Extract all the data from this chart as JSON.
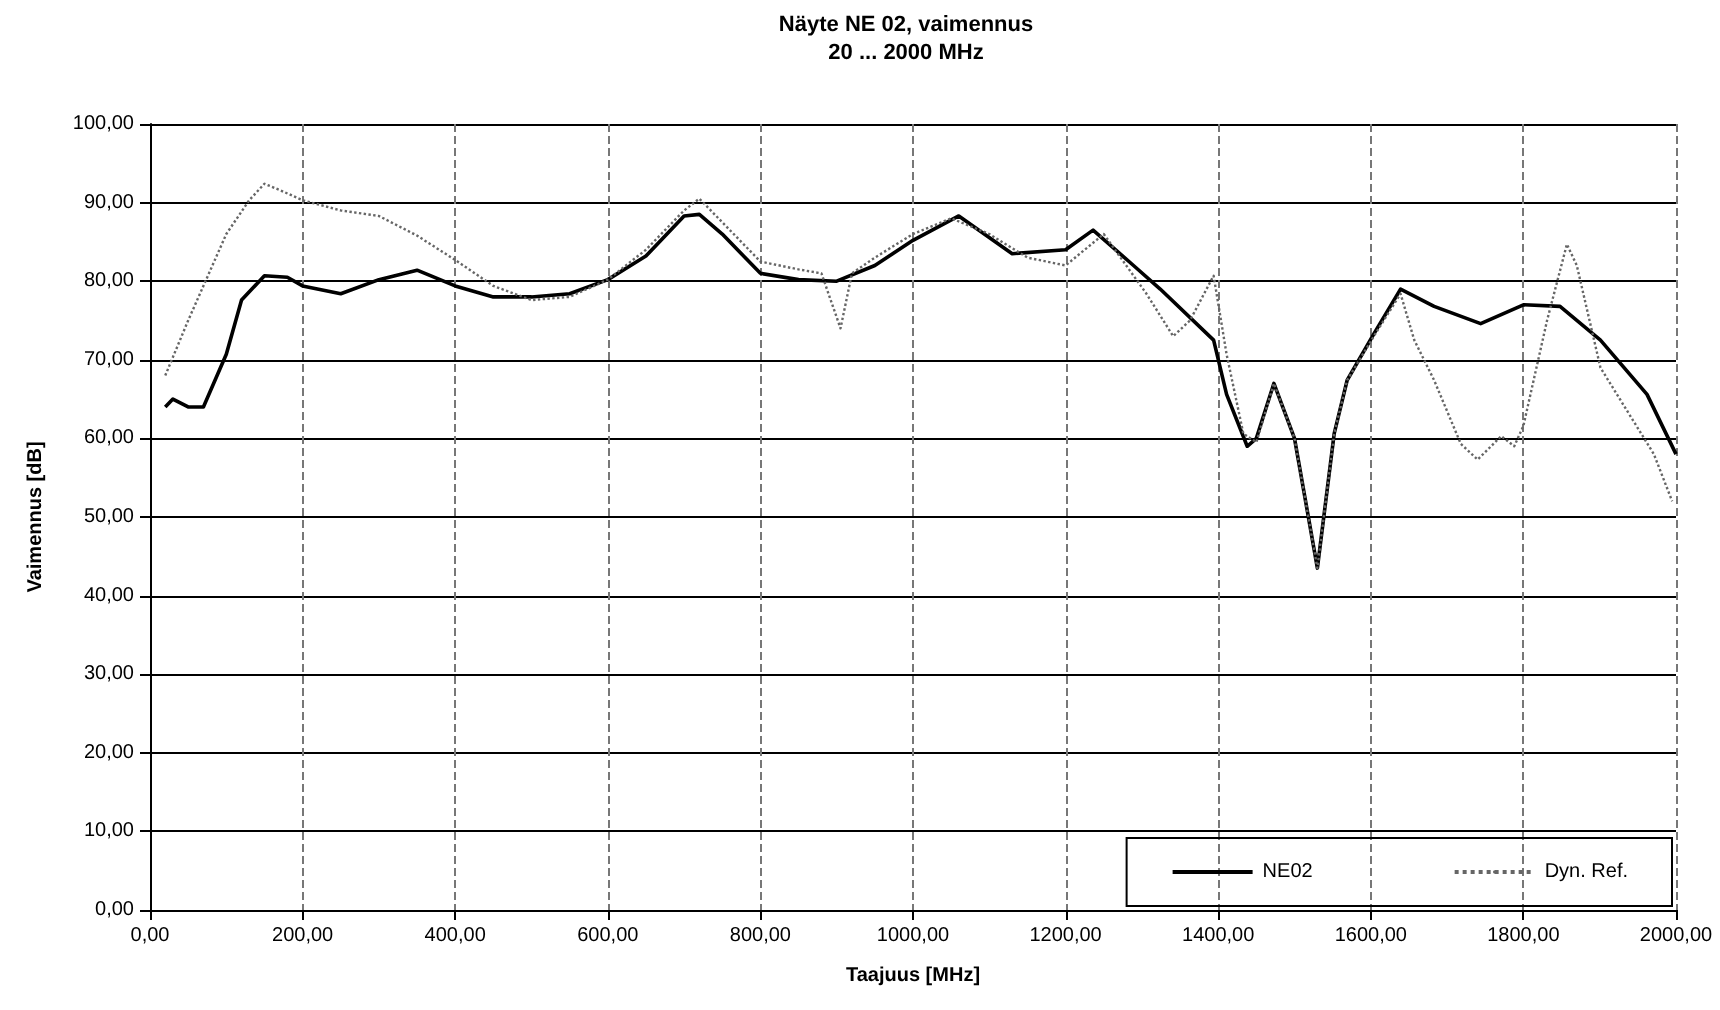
{
  "chart_data": {
    "type": "line",
    "title": "Näyte NE 02, vaimennus",
    "subtitle": "20 ... 2000 MHz",
    "xlabel": "Taajuus [MHz]",
    "ylabel": "Vaimennus [dB]",
    "xlim": [
      0,
      2000
    ],
    "ylim": [
      0,
      100
    ],
    "xticks": [
      {
        "value": 0,
        "label": "0,00"
      },
      {
        "value": 200,
        "label": "200,00"
      },
      {
        "value": 400,
        "label": "400,00"
      },
      {
        "value": 600,
        "label": "600,00"
      },
      {
        "value": 800,
        "label": "800,00"
      },
      {
        "value": 1000,
        "label": "1000,00"
      },
      {
        "value": 1200,
        "label": "1200,00"
      },
      {
        "value": 1400,
        "label": "1400,00"
      },
      {
        "value": 1600,
        "label": "1600,00"
      },
      {
        "value": 1800,
        "label": "1800,00"
      },
      {
        "value": 2000,
        "label": "2000,00"
      }
    ],
    "yticks": [
      {
        "value": 0,
        "label": "0,00"
      },
      {
        "value": 10,
        "label": "10,00"
      },
      {
        "value": 20,
        "label": "20,00"
      },
      {
        "value": 30,
        "label": "30,00"
      },
      {
        "value": 40,
        "label": "40,00"
      },
      {
        "value": 50,
        "label": "50,00"
      },
      {
        "value": 60,
        "label": "60,00"
      },
      {
        "value": 70,
        "label": "70,00"
      },
      {
        "value": 80,
        "label": "80,00"
      },
      {
        "value": 90,
        "label": "90,00"
      },
      {
        "value": 100,
        "label": "100,00"
      }
    ],
    "grid": true,
    "legend": "bottom right",
    "marker": "none",
    "series": [
      {
        "name": "NE02",
        "color": "#000000",
        "line_style": "solid",
        "x": [
          20,
          30,
          50,
          70,
          100,
          120,
          150,
          180,
          200,
          250,
          300,
          350,
          400,
          450,
          500,
          550,
          600,
          650,
          700,
          720,
          750,
          800,
          850,
          900,
          950,
          1000,
          1060,
          1130,
          1200,
          1236,
          1289,
          1324,
          1394,
          1411,
          1438,
          1450,
          1473,
          1500,
          1530,
          1552,
          1569,
          1604,
          1639,
          1683,
          1744,
          1800,
          1848,
          1901,
          1962,
          2000
        ],
        "values": [
          64,
          65,
          64,
          64,
          70.7,
          77.6,
          80.7,
          80.5,
          79.4,
          78.4,
          80.2,
          81.4,
          79.4,
          78,
          78,
          78.4,
          80.2,
          83.2,
          88.3,
          88.5,
          86,
          81,
          80.2,
          80,
          82,
          85.2,
          88.3,
          83.5,
          84,
          86.5,
          82,
          79,
          72.5,
          65.6,
          59,
          60,
          67,
          60,
          43.5,
          60.6,
          67.4,
          73.3,
          79,
          76.8,
          74.6,
          77,
          76.8,
          72.5,
          65.6,
          58
        ]
      },
      {
        "name": "Dyn. Ref.",
        "color": "#666666",
        "line_style": "dotted",
        "x": [
          20,
          50,
          100,
          130,
          150,
          170,
          200,
          250,
          300,
          350,
          400,
          450,
          500,
          550,
          600,
          650,
          700,
          720,
          750,
          800,
          850,
          880,
          905,
          920,
          950,
          1000,
          1050,
          1100,
          1150,
          1200,
          1250,
          1306,
          1341,
          1363,
          1394,
          1411,
          1433,
          1450,
          1473,
          1500,
          1530,
          1552,
          1569,
          1604,
          1639,
          1657,
          1683,
          1718,
          1740,
          1771,
          1788,
          1800,
          1831,
          1857,
          1870,
          1901,
          1971,
          1995
        ],
        "values": [
          68,
          75,
          86,
          90.3,
          92.4,
          91.6,
          90.3,
          89,
          88.3,
          85.8,
          82.7,
          79.4,
          77.6,
          78,
          80.2,
          84,
          89,
          90.5,
          87.5,
          82.5,
          81.5,
          81,
          74,
          81,
          83,
          86,
          88,
          86,
          83,
          82,
          86,
          78.4,
          73,
          75,
          80.7,
          70.7,
          60.6,
          59.5,
          67,
          60,
          43.5,
          60.6,
          67.4,
          73,
          78.4,
          72.5,
          67.4,
          59.3,
          57.3,
          60.3,
          59,
          61.6,
          75,
          84.7,
          82,
          69,
          58,
          52
        ]
      }
    ]
  }
}
